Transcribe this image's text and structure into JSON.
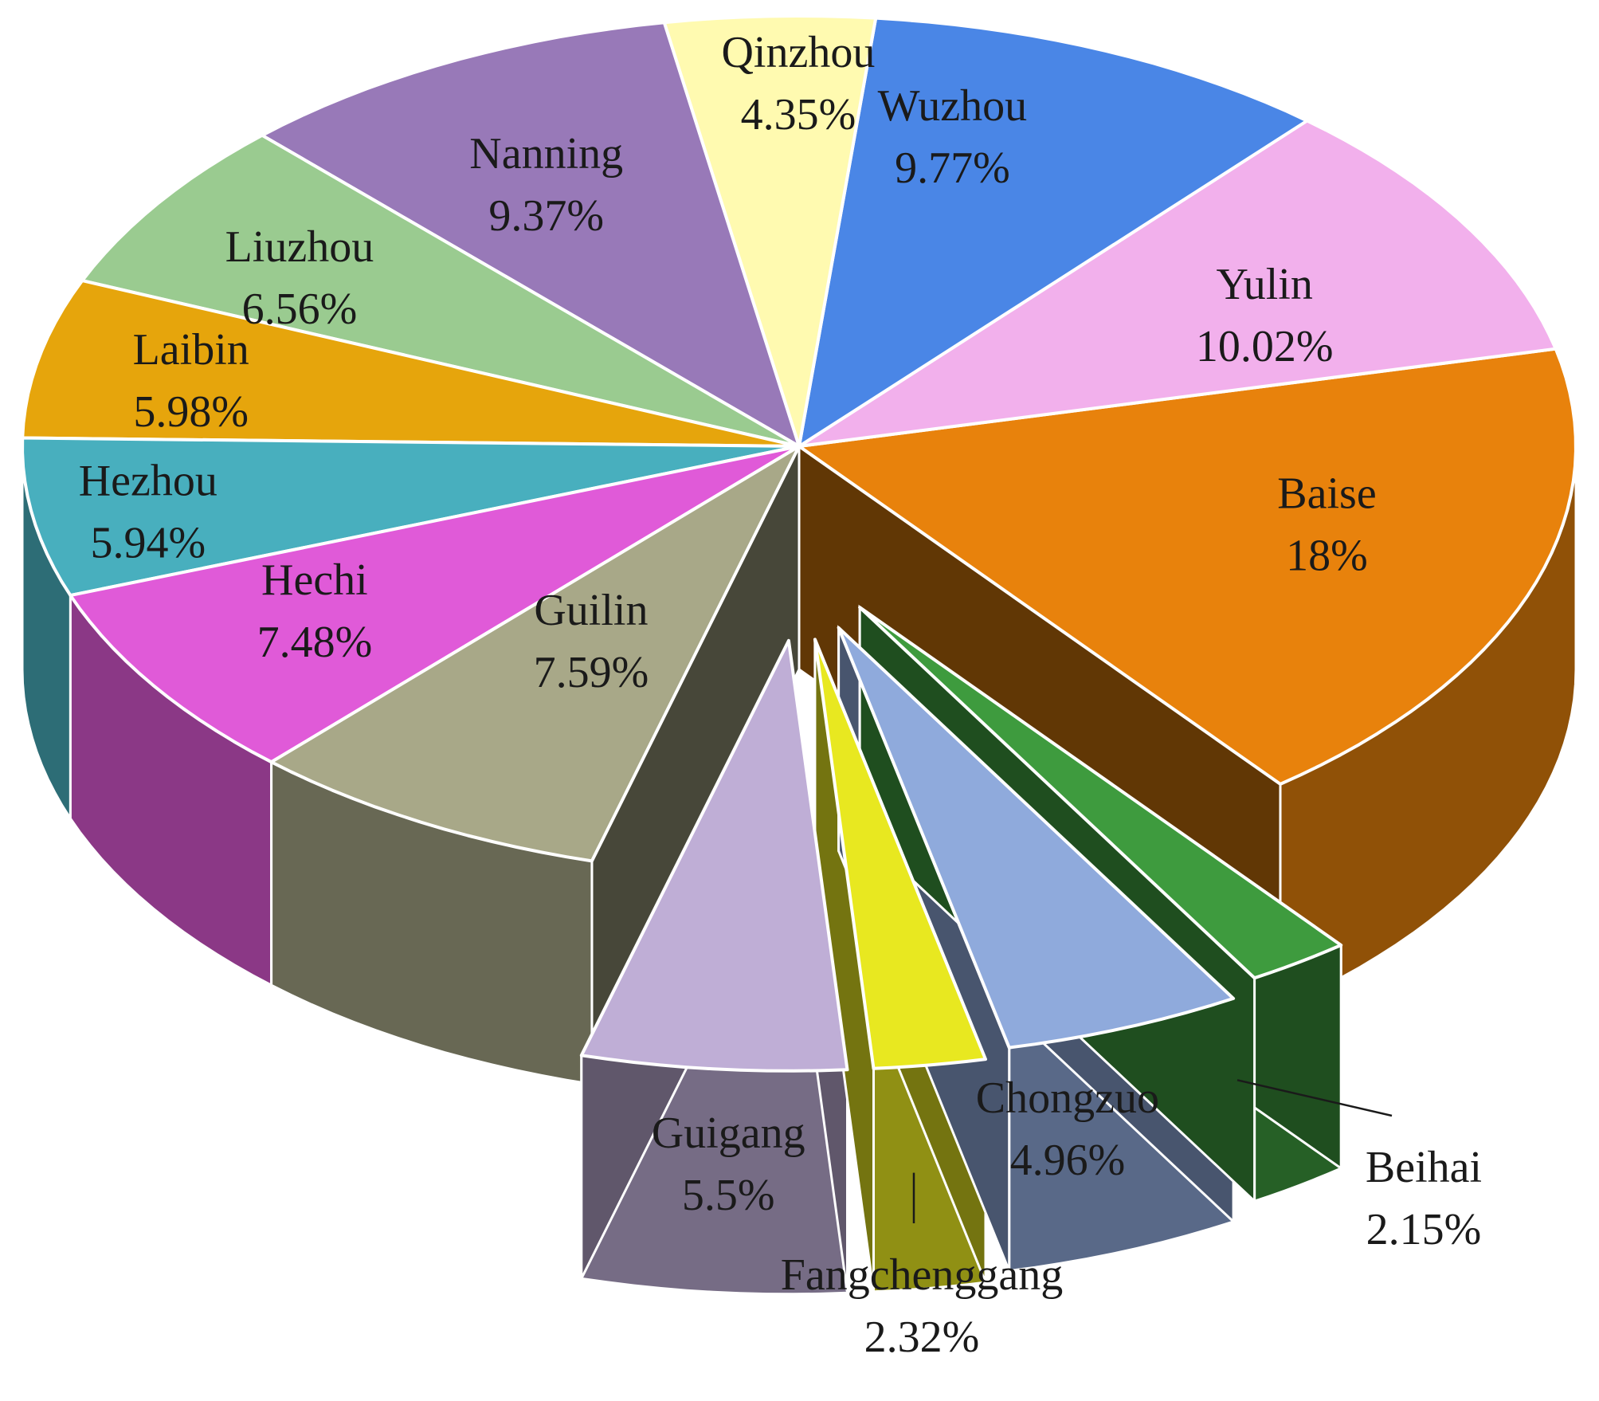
{
  "chart_data": {
    "type": "pie",
    "style": "3d-exploded",
    "slices": [
      {
        "label": "Baise",
        "value": 18,
        "value_label": "18%",
        "color": "#E8820C",
        "exploded": false
      },
      {
        "label": "Beihai",
        "value": 2.15,
        "value_label": "2.15%",
        "color": "#3E9B3E",
        "exploded": true
      },
      {
        "label": "Chongzuo",
        "value": 4.96,
        "value_label": "4.96%",
        "color": "#8FAADC",
        "exploded": true
      },
      {
        "label": "Fangchenggang",
        "value": 2.32,
        "value_label": "2.32%",
        "color": "#E8E820",
        "exploded": true
      },
      {
        "label": "Guigang",
        "value": 5.5,
        "value_label": "5.5%",
        "color": "#BFAED6",
        "exploded": true
      },
      {
        "label": "Guilin",
        "value": 7.59,
        "value_label": "7.59%",
        "color": "#A8A888",
        "exploded": false
      },
      {
        "label": "Hechi",
        "value": 7.48,
        "value_label": "7.48%",
        "color": "#E05AD8",
        "exploded": false
      },
      {
        "label": "Hezhou",
        "value": 5.94,
        "value_label": "5.94%",
        "color": "#48AFBE",
        "exploded": false
      },
      {
        "label": "Laibin",
        "value": 5.98,
        "value_label": "5.98%",
        "color": "#E6A50C",
        "exploded": false
      },
      {
        "label": "Liuzhou",
        "value": 6.56,
        "value_label": "6.56%",
        "color": "#9ACB90",
        "exploded": false
      },
      {
        "label": "Nanning",
        "value": 9.37,
        "value_label": "9.37%",
        "color": "#9879B8",
        "exploded": false
      },
      {
        "label": "Qinzhou",
        "value": 4.35,
        "value_label": "4.35%",
        "color": "#FFFAB0",
        "exploded": false
      },
      {
        "label": "Wuzhou",
        "value": 9.77,
        "value_label": "9.77%",
        "color": "#4A86E6",
        "exploded": false
      },
      {
        "label": "Yulin",
        "value": 10.02,
        "value_label": "10.02%",
        "color": "#F2B0EC",
        "exploded": false
      }
    ]
  }
}
